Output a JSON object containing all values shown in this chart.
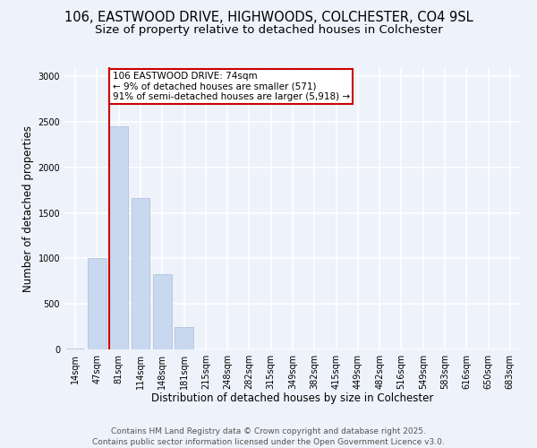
{
  "title_line1": "106, EASTWOOD DRIVE, HIGHWOODS, COLCHESTER, CO4 9SL",
  "title_line2": "Size of property relative to detached houses in Colchester",
  "xlabel": "Distribution of detached houses by size in Colchester",
  "ylabel": "Number of detached properties",
  "bar_color": "#c8d8ee",
  "bar_edge_color": "#aabdd8",
  "annotation_box_color": "#cc0000",
  "property_line_color": "#cc0000",
  "categories": [
    "14sqm",
    "47sqm",
    "81sqm",
    "114sqm",
    "148sqm",
    "181sqm",
    "215sqm",
    "248sqm",
    "282sqm",
    "315sqm",
    "349sqm",
    "382sqm",
    "415sqm",
    "449sqm",
    "482sqm",
    "516sqm",
    "549sqm",
    "583sqm",
    "616sqm",
    "650sqm",
    "683sqm"
  ],
  "values": [
    5,
    1000,
    2450,
    1660,
    830,
    250,
    0,
    0,
    0,
    0,
    0,
    0,
    0,
    0,
    0,
    0,
    0,
    0,
    0,
    0,
    0
  ],
  "ylim": [
    0,
    3100
  ],
  "yticks": [
    0,
    500,
    1000,
    1500,
    2000,
    2500,
    3000
  ],
  "property_bar_index": 2,
  "annotation_text": "106 EASTWOOD DRIVE: 74sqm\n← 9% of detached houses are smaller (571)\n91% of semi-detached houses are larger (5,918) →",
  "footer_line1": "Contains HM Land Registry data © Crown copyright and database right 2025.",
  "footer_line2": "Contains public sector information licensed under the Open Government Licence v3.0.",
  "background_color": "#eef2fa",
  "grid_color": "#ffffff",
  "title_fontsize": 10.5,
  "subtitle_fontsize": 9.5,
  "axis_label_fontsize": 8.5,
  "tick_fontsize": 7,
  "annotation_fontsize": 7.5,
  "footer_fontsize": 6.5
}
